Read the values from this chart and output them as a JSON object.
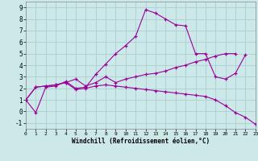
{
  "xlabel": "Windchill (Refroidissement éolien,°C)",
  "xlim": [
    0,
    23
  ],
  "ylim": [
    -1.5,
    9.5
  ],
  "yticks": [
    -1,
    0,
    1,
    2,
    3,
    4,
    5,
    6,
    7,
    8,
    9
  ],
  "xticks": [
    0,
    1,
    2,
    3,
    4,
    5,
    6,
    7,
    8,
    9,
    10,
    11,
    12,
    13,
    14,
    15,
    16,
    17,
    18,
    19,
    20,
    21,
    22,
    23
  ],
  "bg_color": "#cce8e8",
  "grid_color": "#aad0d0",
  "line_color": "#990099",
  "line1_x": [
    0,
    1,
    2,
    3,
    4,
    5,
    6,
    7,
    8,
    9,
    10,
    11,
    12,
    13,
    14,
    15,
    16,
    17,
    18,
    19,
    20,
    21,
    22
  ],
  "line1_y": [
    1.0,
    -0.1,
    2.1,
    2.2,
    2.6,
    2.0,
    2.1,
    3.2,
    4.1,
    5.0,
    5.7,
    6.5,
    8.8,
    8.5,
    8.0,
    7.5,
    7.4,
    5.0,
    5.0,
    3.0,
    2.8,
    3.3,
    4.9
  ],
  "line2_x": [
    0,
    1,
    2,
    3,
    4,
    5,
    6,
    7,
    8,
    9,
    10,
    11,
    12,
    13,
    14,
    15,
    16,
    17,
    18,
    19,
    20,
    21
  ],
  "line2_y": [
    1.0,
    2.1,
    2.2,
    2.3,
    2.5,
    2.8,
    2.2,
    2.5,
    3.0,
    2.5,
    2.8,
    3.0,
    3.2,
    3.3,
    3.5,
    3.8,
    4.0,
    4.3,
    4.5,
    4.8,
    5.0,
    5.0
  ],
  "line3_x": [
    0,
    1,
    2,
    3,
    4,
    5,
    6,
    7,
    8,
    9,
    10,
    11,
    12,
    13,
    14,
    15,
    16,
    17,
    18,
    19,
    20,
    21,
    22,
    23
  ],
  "line3_y": [
    1.0,
    2.1,
    2.2,
    2.3,
    2.5,
    1.9,
    2.0,
    2.2,
    2.3,
    2.2,
    2.1,
    2.0,
    1.9,
    1.8,
    1.7,
    1.6,
    1.5,
    1.4,
    1.3,
    1.0,
    0.5,
    -0.1,
    -0.5,
    -1.1
  ]
}
